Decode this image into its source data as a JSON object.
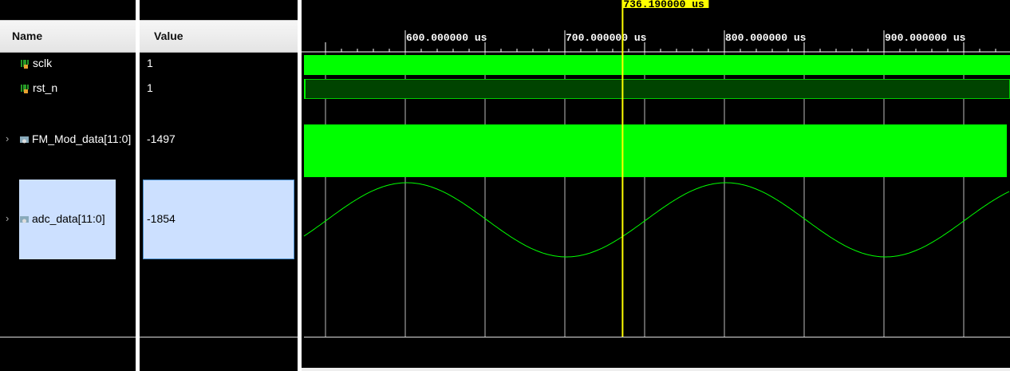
{
  "columns": {
    "name": "Name",
    "value": "Value"
  },
  "signals": [
    {
      "name": "sclk",
      "value": "1",
      "type": "bit"
    },
    {
      "name": "rst_n",
      "value": "1",
      "type": "bit"
    },
    {
      "name": "FM_Mod_data[11:0]",
      "value": "-1497",
      "type": "bus"
    },
    {
      "name": "adc_data[11:0]",
      "value": "-1854",
      "type": "bus",
      "selected": true
    }
  ],
  "timeline": {
    "unit": "us",
    "labels": [
      "600.000000 us",
      "700.000000 us",
      "800.000000 us",
      "900.000000 us"
    ],
    "major_step_us": 50,
    "minor_step_us": 10
  },
  "cursor": {
    "label": "736.190000 us",
    "time_us": 736.19
  },
  "adc_trace": {
    "shape": "sine",
    "period_us": 200,
    "max_at_us": 601
  },
  "colors": {
    "wave": "#00ff00",
    "wave_dim": "#004400",
    "cursor": "#ffff00",
    "selection": "#cce0ff"
  }
}
